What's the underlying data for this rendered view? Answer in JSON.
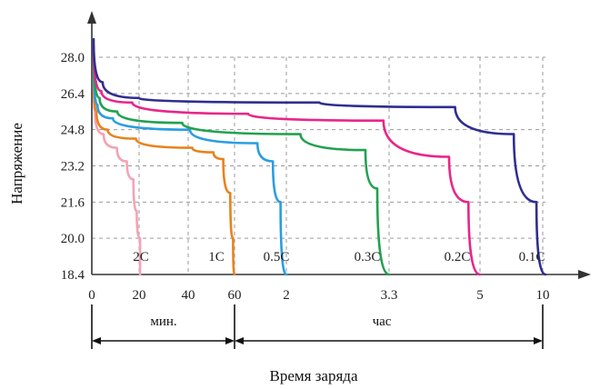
{
  "chart_data": {
    "type": "line",
    "title": "",
    "ylabel": "Напряжение",
    "xlabel": "Время заряда",
    "ylim": [
      18.4,
      28.0
    ],
    "y_ticks": [
      "28.0",
      "26.4",
      "24.8",
      "23.2",
      "21.6",
      "20.0",
      "18.4"
    ],
    "y_tick_values": [
      28.0,
      26.4,
      24.8,
      23.2,
      21.6,
      20.0,
      18.4
    ],
    "x_ticks": [
      "0",
      "20",
      "40",
      "60",
      "2",
      "3.3",
      "5",
      "10"
    ],
    "x_segments": [
      {
        "label": "мин.",
        "from": "0",
        "to": "60"
      },
      {
        "label": "час",
        "from": "60",
        "to": "10"
      }
    ],
    "grid": true,
    "series": [
      {
        "name": "2C",
        "color": "#f4a3b4",
        "end_tick": "0",
        "points": [
          [
            0.0,
            27.6
          ],
          [
            0.02,
            25.6
          ],
          [
            0.15,
            24.6
          ],
          [
            0.35,
            24.0
          ],
          [
            0.5,
            23.4
          ],
          [
            0.6,
            22.6
          ],
          [
            0.65,
            21.2
          ],
          [
            0.7,
            20.0
          ],
          [
            0.7,
            18.4
          ]
        ]
      },
      {
        "name": "1C",
        "color": "#e8821e",
        "end_tick": "20",
        "points": [
          [
            0.0,
            28.0
          ],
          [
            0.02,
            25.6
          ],
          [
            0.1,
            24.8
          ],
          [
            0.3,
            24.4
          ],
          [
            0.7,
            24.0
          ],
          [
            0.85,
            23.8
          ],
          [
            0.92,
            23.5
          ],
          [
            0.97,
            22.0
          ],
          [
            0.99,
            20.0
          ],
          [
            1.0,
            18.4
          ]
        ]
      },
      {
        "name": "0.5C",
        "color": "#2a9ee0",
        "end_tick": "40",
        "points": [
          [
            0.0,
            28.2
          ],
          [
            0.02,
            25.9
          ],
          [
            0.1,
            25.3
          ],
          [
            0.5,
            24.8
          ],
          [
            0.85,
            24.2
          ],
          [
            0.93,
            23.4
          ],
          [
            0.97,
            21.6
          ],
          [
            1.0,
            18.4
          ]
        ]
      },
      {
        "name": "0.3C",
        "color": "#22a150",
        "end_tick": "60",
        "points": [
          [
            0.0,
            28.3
          ],
          [
            0.02,
            26.2
          ],
          [
            0.08,
            25.6
          ],
          [
            0.3,
            25.1
          ],
          [
            0.7,
            24.6
          ],
          [
            0.92,
            23.9
          ],
          [
            0.96,
            22.2
          ],
          [
            1.0,
            18.4
          ]
        ]
      },
      {
        "name": "0.2C",
        "color": "#e8268a",
        "end_tick": "2",
        "points": [
          [
            0.0,
            28.5
          ],
          [
            0.02,
            26.5
          ],
          [
            0.1,
            26.0
          ],
          [
            0.4,
            25.5
          ],
          [
            0.75,
            25.2
          ],
          [
            0.92,
            23.6
          ],
          [
            0.97,
            21.6
          ],
          [
            1.0,
            18.4
          ]
        ]
      },
      {
        "name": "0.1C",
        "color": "#2f2e8f",
        "end_tick": "3.3",
        "points": [
          [
            0.0,
            28.8
          ],
          [
            0.02,
            26.9
          ],
          [
            0.1,
            26.2
          ],
          [
            0.5,
            26.0
          ],
          [
            0.8,
            25.8
          ],
          [
            0.93,
            24.6
          ],
          [
            0.98,
            21.6
          ],
          [
            1.0,
            18.4
          ]
        ]
      }
    ],
    "rate_labels": [
      "2C",
      "1C",
      "0.5C",
      "0.3C",
      "0.2C",
      "0.1C"
    ]
  }
}
